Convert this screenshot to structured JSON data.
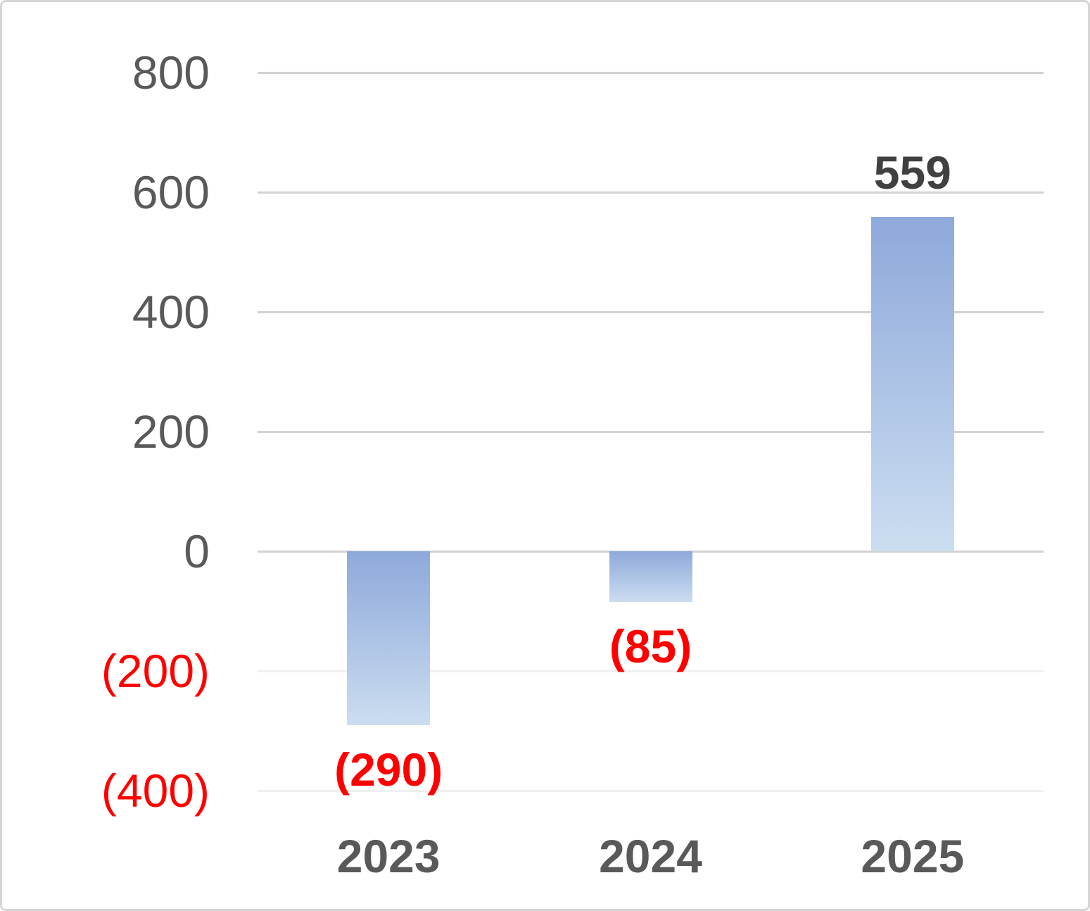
{
  "chart_data": {
    "type": "bar",
    "title": "",
    "xlabel": "",
    "ylabel": "",
    "categories": [
      "2023",
      "2024",
      "2025"
    ],
    "values": [
      -290,
      -85,
      559
    ],
    "data_labels": [
      "(290)",
      "(85)",
      "559"
    ],
    "ylim": [
      -400,
      800
    ],
    "grid": "horizontal",
    "legend": "none",
    "negative_format": "parentheses-red",
    "y_ticks": [
      {
        "value": 800,
        "label": "800",
        "label_color": "#595959",
        "grid_color": "#d2d2d2"
      },
      {
        "value": 600,
        "label": "600",
        "label_color": "#595959",
        "grid_color": "#d2d2d2"
      },
      {
        "value": 400,
        "label": "400",
        "label_color": "#595959",
        "grid_color": "#d2d2d2"
      },
      {
        "value": 200,
        "label": "200",
        "label_color": "#595959",
        "grid_color": "#d2d2d2"
      },
      {
        "value": 0,
        "label": "0",
        "label_color": "#595959",
        "grid_color": "#d2d2d2"
      },
      {
        "value": -200,
        "label": "(200)",
        "label_color": "#ff0000",
        "grid_color": "#f0f0f0"
      },
      {
        "value": -400,
        "label": "(400)",
        "label_color": "#ff0000",
        "grid_color": "#f0f0f0"
      }
    ],
    "colors": {
      "bar_gradient_top": "#8ea9db",
      "bar_gradient_bottom": "#cbddf0",
      "positive_data_label": "#404040",
      "negative_data_label": "#ff0000",
      "category_label": "#595959",
      "frame_border": "#d6d6d6"
    }
  }
}
